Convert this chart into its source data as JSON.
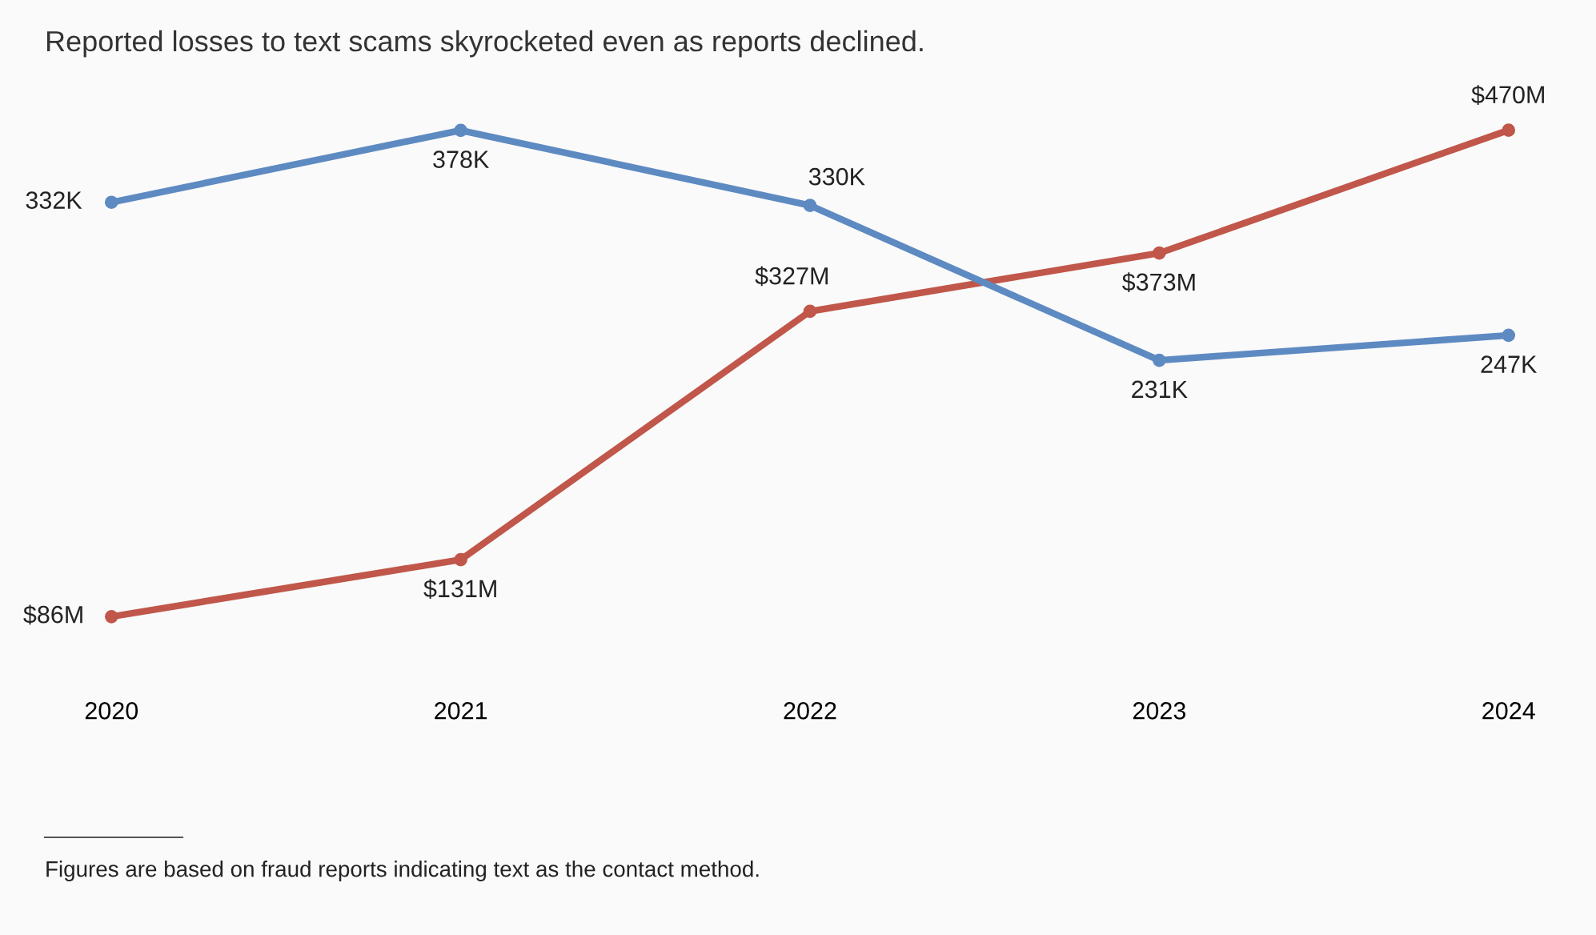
{
  "chart_data": {
    "type": "line",
    "title": "Reported losses to text scams skyrocketed even as reports declined.",
    "categories": [
      "2020",
      "2021",
      "2022",
      "2023",
      "2024"
    ],
    "series": [
      {
        "color": "#c0574a",
        "values": [
          86,
          131,
          327,
          373,
          470
        ],
        "value_labels": [
          "$86M",
          "$131M",
          "$327M",
          "$373M",
          "$470M"
        ]
      },
      {
        "color": "#5e8ac2",
        "axis": "y2",
        "values": [
          332,
          378,
          330,
          231,
          247
        ],
        "value_labels": [
          "332K",
          "378K",
          "330K",
          "231K",
          "247K"
        ]
      }
    ],
    "tick_labels": "x",
    "grid": false,
    "legend": false,
    "marker": "circle",
    "line_style": "solid",
    "annotations": [
      "Figures are based on fraud reports indicating text as the contact method."
    ]
  }
}
